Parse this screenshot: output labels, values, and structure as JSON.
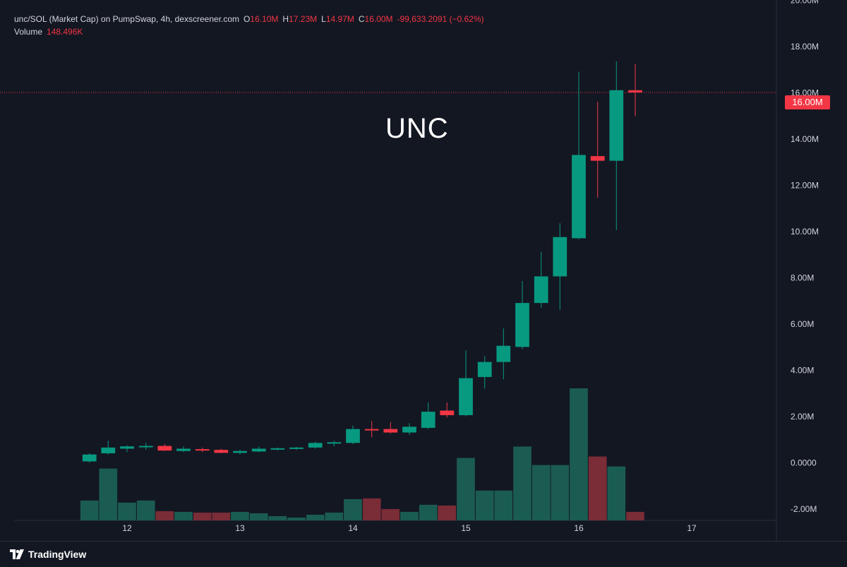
{
  "header": {
    "title": "unc/SOL (Market Cap) on PumpSwap, 4h, dexscreener.com",
    "o_label": "O",
    "o_value": "16.10M",
    "h_label": "H",
    "h_value": "17.23M",
    "l_label": "L",
    "l_value": "14.97M",
    "c_label": "C",
    "c_value": "16.00M",
    "change": "-99,633.2091 (−0.62%)"
  },
  "volume": {
    "label": "Volume",
    "value": "148.496K"
  },
  "watermark": "UNC",
  "last_price_tag": "16.00M",
  "brand": {
    "name": "TradingView"
  },
  "colors": {
    "background": "#131722",
    "up": "#089981",
    "down": "#f23645",
    "up_volume": "#1b5c52",
    "down_volume": "#7a2c37",
    "price_line": "#f23645"
  },
  "chart_data": {
    "type": "candlestick",
    "interval": "4h",
    "y_axis": {
      "ticks": [
        "20.00M",
        "18.00M",
        "16.00M",
        "14.00M",
        "12.00M",
        "10.00M",
        "8.00M",
        "6.00M",
        "4.00M",
        "2.00M",
        "0.0000",
        "-2.00M"
      ],
      "tick_values": [
        20,
        18,
        16,
        14,
        12,
        10,
        8,
        6,
        4,
        2,
        0,
        -2
      ],
      "unit": "M",
      "range": [
        -2.5,
        20
      ]
    },
    "x_axis": {
      "ticks": [
        "12",
        "13",
        "14",
        "15",
        "16",
        "17"
      ],
      "tick_day_index": [
        12,
        13,
        14,
        15,
        16,
        17
      ],
      "range_day": [
        11.0,
        17.75
      ]
    },
    "candles": [
      {
        "t": 11.667,
        "o": 0.05,
        "h": 0.4,
        "l": 0.0,
        "c": 0.35
      },
      {
        "t": 11.833,
        "o": 0.4,
        "h": 0.95,
        "l": 0.35,
        "c": 0.65
      },
      {
        "t": 12.0,
        "o": 0.6,
        "h": 0.75,
        "l": 0.45,
        "c": 0.7
      },
      {
        "t": 12.167,
        "o": 0.68,
        "h": 0.85,
        "l": 0.55,
        "c": 0.72
      },
      {
        "t": 12.333,
        "o": 0.72,
        "h": 0.8,
        "l": 0.5,
        "c": 0.52
      },
      {
        "t": 12.5,
        "o": 0.5,
        "h": 0.7,
        "l": 0.45,
        "c": 0.6
      },
      {
        "t": 12.667,
        "o": 0.58,
        "h": 0.65,
        "l": 0.45,
        "c": 0.55
      },
      {
        "t": 12.833,
        "o": 0.55,
        "h": 0.6,
        "l": 0.4,
        "c": 0.42
      },
      {
        "t": 13.0,
        "o": 0.42,
        "h": 0.55,
        "l": 0.35,
        "c": 0.5
      },
      {
        "t": 13.167,
        "o": 0.48,
        "h": 0.7,
        "l": 0.45,
        "c": 0.6
      },
      {
        "t": 13.333,
        "o": 0.58,
        "h": 0.65,
        "l": 0.52,
        "c": 0.62
      },
      {
        "t": 13.5,
        "o": 0.6,
        "h": 0.68,
        "l": 0.55,
        "c": 0.65
      },
      {
        "t": 13.667,
        "o": 0.65,
        "h": 0.9,
        "l": 0.6,
        "c": 0.85
      },
      {
        "t": 13.833,
        "o": 0.82,
        "h": 0.95,
        "l": 0.7,
        "c": 0.88
      },
      {
        "t": 14.0,
        "o": 0.85,
        "h": 1.6,
        "l": 0.8,
        "c": 1.45
      },
      {
        "t": 14.167,
        "o": 1.45,
        "h": 1.8,
        "l": 1.1,
        "c": 1.4
      },
      {
        "t": 14.333,
        "o": 1.45,
        "h": 1.75,
        "l": 1.25,
        "c": 1.3
      },
      {
        "t": 14.5,
        "o": 1.3,
        "h": 1.7,
        "l": 1.2,
        "c": 1.55
      },
      {
        "t": 14.667,
        "o": 1.5,
        "h": 2.6,
        "l": 1.45,
        "c": 2.2
      },
      {
        "t": 14.833,
        "o": 2.25,
        "h": 2.6,
        "l": 1.95,
        "c": 2.05
      },
      {
        "t": 15.0,
        "o": 2.05,
        "h": 4.85,
        "l": 2.0,
        "c": 3.65
      },
      {
        "t": 15.167,
        "o": 3.7,
        "h": 4.6,
        "l": 3.2,
        "c": 4.35
      },
      {
        "t": 15.333,
        "o": 4.35,
        "h": 5.8,
        "l": 3.6,
        "c": 5.05
      },
      {
        "t": 15.5,
        "o": 5.0,
        "h": 7.85,
        "l": 4.9,
        "c": 6.9
      },
      {
        "t": 15.667,
        "o": 6.9,
        "h": 9.1,
        "l": 6.7,
        "c": 8.05
      },
      {
        "t": 15.833,
        "o": 8.05,
        "h": 10.35,
        "l": 6.6,
        "c": 9.75
      },
      {
        "t": 16.0,
        "o": 9.7,
        "h": 16.9,
        "l": 9.65,
        "c": 13.3
      },
      {
        "t": 16.167,
        "o": 13.25,
        "h": 15.6,
        "l": 11.45,
        "c": 13.05
      },
      {
        "t": 16.333,
        "o": 13.05,
        "h": 17.35,
        "l": 10.05,
        "c": 16.1
      },
      {
        "t": 16.5,
        "o": 16.1,
        "h": 17.23,
        "l": 14.97,
        "c": 16.0
      }
    ],
    "volume_relative": [
      0.28,
      0.73,
      0.25,
      0.28,
      0.13,
      0.12,
      0.11,
      0.11,
      0.12,
      0.1,
      0.06,
      0.04,
      0.08,
      0.11,
      0.3,
      0.31,
      0.16,
      0.12,
      0.22,
      0.21,
      0.88,
      0.42,
      0.42,
      1.04,
      0.78,
      0.78,
      1.86,
      0.9,
      0.76,
      0.12
    ],
    "last_price": 16.0
  }
}
